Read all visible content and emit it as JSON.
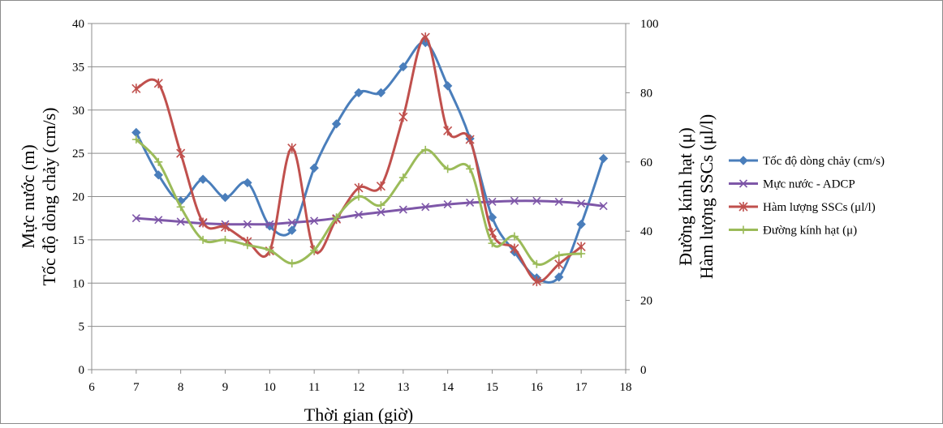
{
  "chart_data": {
    "type": "line",
    "x": {
      "label": "Thời gian (giờ)",
      "range": [
        6,
        18
      ],
      "ticks": [
        6,
        7,
        8,
        9,
        10,
        11,
        12,
        13,
        14,
        15,
        16,
        17,
        18
      ]
    },
    "y_left": {
      "label_lines": [
        "Mực nước (m)",
        "Tốc độ dòng chảy (cm/s)"
      ],
      "range": [
        0,
        40
      ],
      "ticks": [
        0,
        5,
        10,
        15,
        20,
        25,
        30,
        35,
        40
      ]
    },
    "y_right": {
      "label_lines": [
        "Đường kính hạt (μ)",
        "Hàm lượng SSCs (μl/l)"
      ],
      "range": [
        0,
        100
      ],
      "ticks": [
        0,
        20,
        40,
        60,
        80,
        100
      ]
    },
    "grid": "horizontal",
    "legend_position": "right",
    "series": [
      {
        "name": "Tốc độ dòng chảy (cm/s)",
        "axis": "left",
        "color": "#4A7EBB",
        "marker": "diamond",
        "points": [
          [
            7,
            27.4
          ],
          [
            7.5,
            22.5
          ],
          [
            8,
            19.5
          ],
          [
            8.5,
            22
          ],
          [
            9,
            19.9
          ],
          [
            9.5,
            21.6
          ],
          [
            10,
            16.6
          ],
          [
            10.5,
            16.1
          ],
          [
            11,
            23.3
          ],
          [
            11.5,
            28.4
          ],
          [
            12,
            32
          ],
          [
            12.5,
            32
          ],
          [
            13,
            35
          ],
          [
            13.5,
            37.8
          ],
          [
            14,
            32.8
          ],
          [
            14.5,
            26.7
          ],
          [
            15,
            17.6
          ],
          [
            15.5,
            13.6
          ],
          [
            16,
            10.6
          ],
          [
            16.5,
            10.7
          ],
          [
            17,
            16.8
          ],
          [
            17.5,
            24.4
          ]
        ]
      },
      {
        "name": "Mực nước - ADCP",
        "axis": "left",
        "color": "#7E57A8",
        "marker": "x",
        "points": [
          [
            7,
            17.5
          ],
          [
            7.5,
            17.3
          ],
          [
            8,
            17.1
          ],
          [
            8.5,
            16.9
          ],
          [
            9,
            16.8
          ],
          [
            9.5,
            16.8
          ],
          [
            10,
            16.8
          ],
          [
            10.5,
            17
          ],
          [
            11,
            17.2
          ],
          [
            11.5,
            17.5
          ],
          [
            12,
            17.9
          ],
          [
            12.5,
            18.2
          ],
          [
            13,
            18.5
          ],
          [
            13.5,
            18.8
          ],
          [
            14,
            19.1
          ],
          [
            14.5,
            19.3
          ],
          [
            15,
            19.4
          ],
          [
            15.5,
            19.5
          ],
          [
            16,
            19.5
          ],
          [
            16.5,
            19.4
          ],
          [
            17,
            19.2
          ],
          [
            17.5,
            18.9
          ]
        ]
      },
      {
        "name": "Hàm lượng SSCs (μl/l)",
        "axis": "right",
        "color": "#C0504D",
        "marker": "star",
        "points": [
          [
            7,
            81.2
          ],
          [
            7.5,
            82.7
          ],
          [
            8,
            62.5
          ],
          [
            8.5,
            42.5
          ],
          [
            9,
            41.2
          ],
          [
            9.5,
            37
          ],
          [
            10,
            34.3
          ],
          [
            10.5,
            64
          ],
          [
            11,
            34.5
          ],
          [
            11.5,
            43.5
          ],
          [
            12,
            52.5
          ],
          [
            12.5,
            53
          ],
          [
            13,
            73
          ],
          [
            13.5,
            96
          ],
          [
            14,
            69
          ],
          [
            14.5,
            66.5
          ],
          [
            15,
            39.5
          ],
          [
            15.5,
            35
          ],
          [
            16,
            25.5
          ],
          [
            16.5,
            30.5
          ],
          [
            17,
            35.5
          ]
        ]
      },
      {
        "name": "Đường kính hạt (μ)",
        "axis": "right",
        "color": "#9BBB59",
        "marker": "plus",
        "points": [
          [
            7,
            66.5
          ],
          [
            7.5,
            60
          ],
          [
            8,
            47
          ],
          [
            8.5,
            37.5
          ],
          [
            9,
            37.5
          ],
          [
            9.5,
            36
          ],
          [
            10,
            34.5
          ],
          [
            10.5,
            30.7
          ],
          [
            11,
            34.5
          ],
          [
            11.5,
            44
          ],
          [
            12,
            50
          ],
          [
            12.5,
            47.5
          ],
          [
            13,
            55.5
          ],
          [
            13.5,
            63.5
          ],
          [
            14,
            58
          ],
          [
            14.5,
            58
          ],
          [
            15,
            36.5
          ],
          [
            15.5,
            38.5
          ],
          [
            16,
            30.5
          ],
          [
            16.5,
            33
          ],
          [
            17,
            33.5
          ]
        ]
      }
    ]
  }
}
